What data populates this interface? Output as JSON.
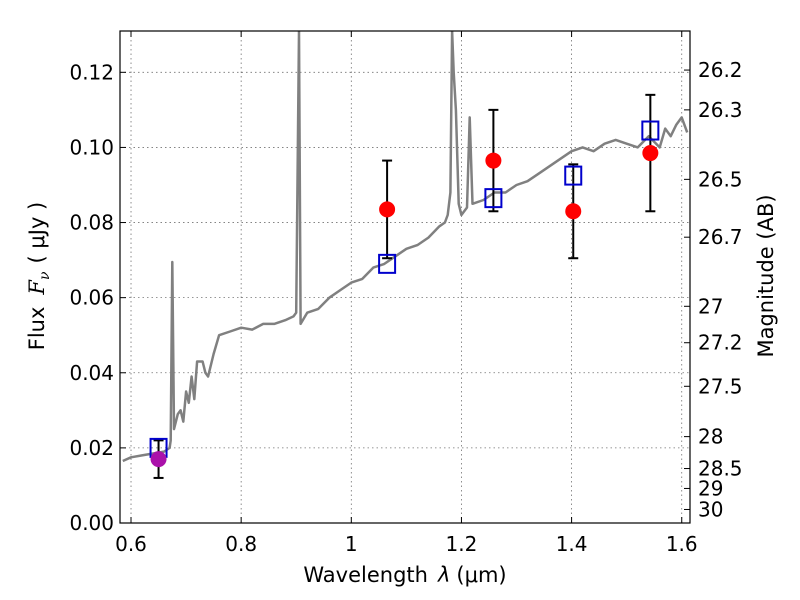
{
  "chart_data": {
    "type": "scatter",
    "xlabel_prefix": "Wavelength",
    "xlabel_symbol": "λ",
    "xlabel_unit": "(μm)",
    "ylabel_prefix": "Flux",
    "ylabel_symbol": "F",
    "ylabel_subscript": "ν",
    "ylabel_unit": "( μJy )",
    "y2label": "Magnitude (AB)",
    "xlim": [
      0.58,
      1.615
    ],
    "ylim": [
      0.0,
      0.131
    ],
    "grid": true,
    "x_ticks": [
      0.6,
      0.8,
      1.0,
      1.2,
      1.4,
      1.6
    ],
    "x_tick_labels": [
      "0.6",
      "0.8",
      "1",
      "1.2",
      "1.4",
      "1.6"
    ],
    "y_ticks": [
      0.0,
      0.02,
      0.04,
      0.06,
      0.08,
      0.1,
      0.12
    ],
    "y_tick_labels": [
      "0.00",
      "0.02",
      "0.04",
      "0.06",
      "0.08",
      "0.10",
      "0.12"
    ],
    "mag_ticks": [
      {
        "label": "26.2",
        "flux": 0.1206
      },
      {
        "label": "26.3",
        "flux": 0.11
      },
      {
        "label": "26.5",
        "flux": 0.0915
      },
      {
        "label": "26.7",
        "flux": 0.0761
      },
      {
        "label": "27",
        "flux": 0.0577
      },
      {
        "label": "27.2",
        "flux": 0.048
      },
      {
        "label": "27.5",
        "flux": 0.0364
      },
      {
        "label": "28",
        "flux": 0.023
      },
      {
        "label": "28.5",
        "flux": 0.0145
      },
      {
        "label": "29",
        "flux": 0.0092
      },
      {
        "label": "30",
        "flux": 0.0036
      }
    ],
    "series": [
      {
        "kind": "model-spectrum",
        "color": "#808080",
        "points": [
          [
            0.585,
            0.0165
          ],
          [
            0.6,
            0.0175
          ],
          [
            0.62,
            0.018
          ],
          [
            0.64,
            0.0185
          ],
          [
            0.66,
            0.019
          ],
          [
            0.67,
            0.02
          ],
          [
            0.672,
            0.022
          ],
          [
            0.675,
            0.0695
          ],
          [
            0.678,
            0.025
          ],
          [
            0.685,
            0.029
          ],
          [
            0.69,
            0.03
          ],
          [
            0.695,
            0.027
          ],
          [
            0.7,
            0.035
          ],
          [
            0.705,
            0.032
          ],
          [
            0.71,
            0.039
          ],
          [
            0.715,
            0.033
          ],
          [
            0.72,
            0.043
          ],
          [
            0.73,
            0.043
          ],
          [
            0.735,
            0.04
          ],
          [
            0.74,
            0.039
          ],
          [
            0.75,
            0.045
          ],
          [
            0.76,
            0.05
          ],
          [
            0.78,
            0.051
          ],
          [
            0.8,
            0.052
          ],
          [
            0.82,
            0.0515
          ],
          [
            0.84,
            0.053
          ],
          [
            0.86,
            0.053
          ],
          [
            0.88,
            0.054
          ],
          [
            0.895,
            0.055
          ],
          [
            0.9,
            0.056
          ],
          [
            0.905,
            0.131
          ],
          [
            0.908,
            0.053
          ],
          [
            0.92,
            0.056
          ],
          [
            0.94,
            0.057
          ],
          [
            0.96,
            0.06
          ],
          [
            0.98,
            0.062
          ],
          [
            1.0,
            0.064
          ],
          [
            1.02,
            0.065
          ],
          [
            1.04,
            0.068
          ],
          [
            1.06,
            0.069
          ],
          [
            1.08,
            0.071
          ],
          [
            1.1,
            0.073
          ],
          [
            1.12,
            0.074
          ],
          [
            1.14,
            0.076
          ],
          [
            1.16,
            0.079
          ],
          [
            1.17,
            0.08
          ],
          [
            1.175,
            0.082
          ],
          [
            1.18,
            0.088
          ],
          [
            1.183,
            0.131
          ],
          [
            1.186,
            0.12
          ],
          [
            1.19,
            0.11
          ],
          [
            1.195,
            0.085
          ],
          [
            1.2,
            0.082
          ],
          [
            1.21,
            0.084
          ],
          [
            1.215,
            0.108
          ],
          [
            1.22,
            0.085
          ],
          [
            1.24,
            0.086
          ],
          [
            1.26,
            0.088
          ],
          [
            1.28,
            0.088
          ],
          [
            1.3,
            0.09
          ],
          [
            1.32,
            0.091
          ],
          [
            1.34,
            0.093
          ],
          [
            1.36,
            0.095
          ],
          [
            1.38,
            0.097
          ],
          [
            1.4,
            0.099
          ],
          [
            1.42,
            0.1
          ],
          [
            1.44,
            0.099
          ],
          [
            1.46,
            0.101
          ],
          [
            1.48,
            0.102
          ],
          [
            1.5,
            0.101
          ],
          [
            1.52,
            0.1
          ],
          [
            1.54,
            0.103
          ],
          [
            1.56,
            0.1
          ],
          [
            1.57,
            0.105
          ],
          [
            1.58,
            0.103
          ],
          [
            1.59,
            0.106
          ],
          [
            1.6,
            0.108
          ],
          [
            1.61,
            0.104
          ]
        ]
      },
      {
        "kind": "model-photometry",
        "marker": "open-square",
        "color": "#0000cc",
        "points": [
          [
            0.65,
            0.02
          ],
          [
            1.065,
            0.069
          ],
          [
            1.258,
            0.0865
          ],
          [
            1.403,
            0.0925
          ],
          [
            1.543,
            0.1045
          ]
        ]
      },
      {
        "kind": "observed-photometry",
        "marker": "filled-circle",
        "color": "#ff0000",
        "points": [
          {
            "x": 1.065,
            "y": 0.0835,
            "err": 0.013
          },
          {
            "x": 1.258,
            "y": 0.0965,
            "err": 0.0135
          },
          {
            "x": 1.403,
            "y": 0.083,
            "err": 0.0125
          },
          {
            "x": 1.543,
            "y": 0.0985,
            "err": 0.0155
          }
        ]
      },
      {
        "kind": "observed-photometry",
        "marker": "filled-circle",
        "color": "#aa11aa",
        "points": [
          {
            "x": 0.65,
            "y": 0.017,
            "err": 0.005
          }
        ]
      }
    ]
  }
}
